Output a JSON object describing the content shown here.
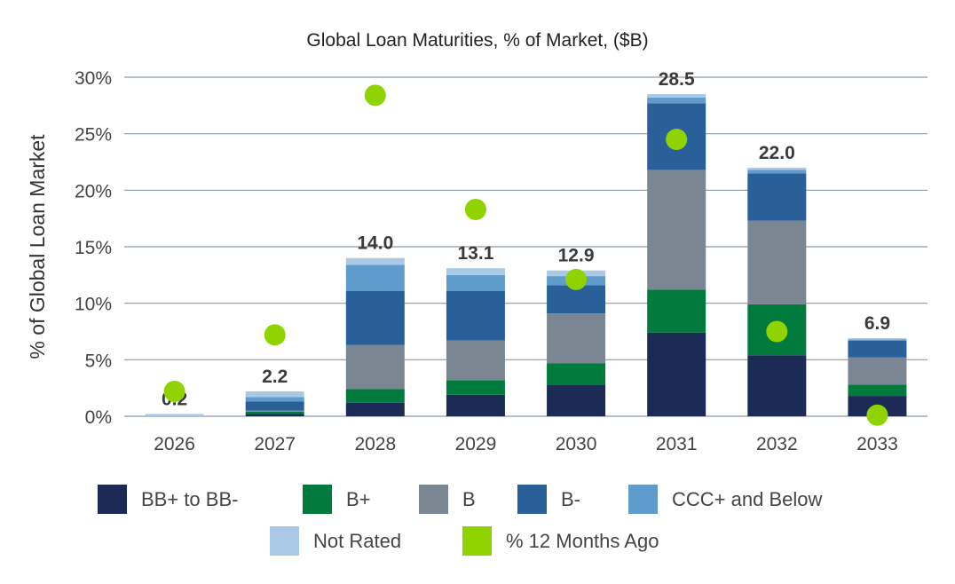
{
  "chart_data": {
    "type": "bar",
    "stacked": true,
    "title": "Global Loan Maturities, % of Market, ($B)",
    "xlabel": "",
    "ylabel": "% of Global Loan Market",
    "ylim": [
      0,
      30
    ],
    "yticks": [
      "0%",
      "5%",
      "10%",
      "15%",
      "20%",
      "25%",
      "30%"
    ],
    "grid": true,
    "legend_position": "bottom",
    "categories": [
      "2026",
      "2027",
      "2028",
      "2029",
      "2030",
      "2031",
      "2032",
      "2033"
    ],
    "series": [
      {
        "name": "BB+ to BB-",
        "color": "#1c2b55",
        "values": [
          0.0,
          0.2,
          1.2,
          1.9,
          2.8,
          7.4,
          5.4,
          1.8
        ]
      },
      {
        "name": "B+",
        "color": "#007a3d",
        "values": [
          0.0,
          0.2,
          1.2,
          1.3,
          1.9,
          3.8,
          4.5,
          1.0
        ]
      },
      {
        "name": "B",
        "color": "#7a8792",
        "values": [
          0.0,
          0.1,
          3.9,
          3.5,
          4.4,
          10.6,
          7.4,
          2.4
        ]
      },
      {
        "name": "B-",
        "color": "#29609a",
        "values": [
          0.0,
          0.8,
          4.8,
          4.4,
          2.5,
          5.9,
          4.2,
          1.5
        ]
      },
      {
        "name": "CCC+ and Below",
        "color": "#5f9ccc",
        "values": [
          0.0,
          0.4,
          2.3,
          1.4,
          0.8,
          0.5,
          0.3,
          0.1
        ]
      },
      {
        "name": "Not Rated",
        "color": "#a9c9e6",
        "values": [
          0.2,
          0.5,
          0.6,
          0.6,
          0.5,
          0.3,
          0.2,
          0.1
        ]
      }
    ],
    "totals": [
      "0.2",
      "2.2",
      "14.0",
      "13.1",
      "12.9",
      "28.5",
      "22.0",
      "6.9"
    ],
    "scatter_series": {
      "name": "% 12 Months Ago",
      "color": "#8fd400",
      "values": [
        2.2,
        7.2,
        28.4,
        18.3,
        12.1,
        24.5,
        7.5,
        0.1
      ]
    }
  }
}
